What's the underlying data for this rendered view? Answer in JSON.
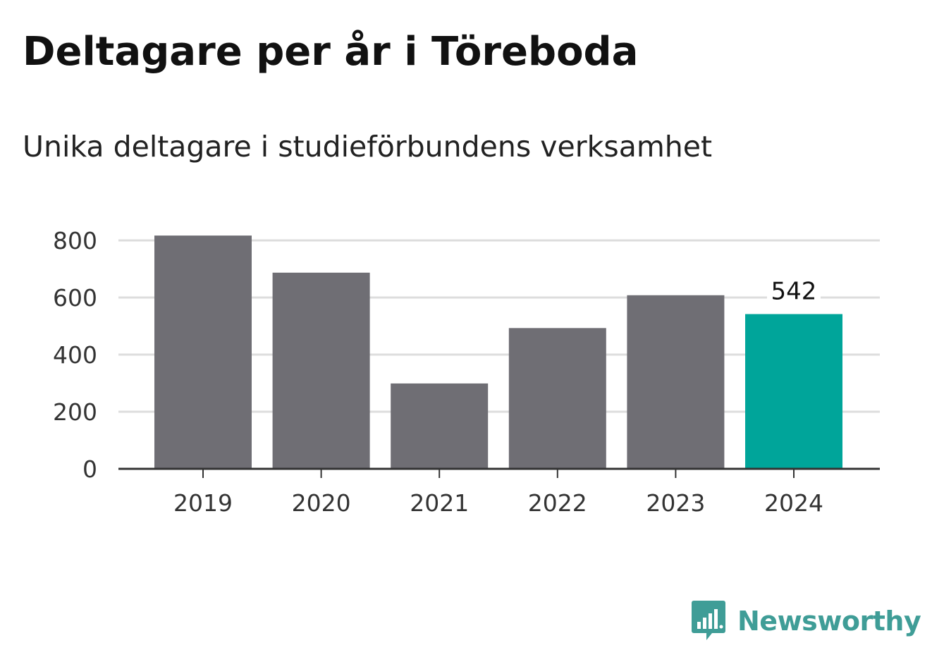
{
  "header": {
    "title": "Deltagare per år i Töreboda",
    "subtitle": "Unika deltagare i studieförbundens verksamhet"
  },
  "branding": {
    "logo_text": "Newsworthy",
    "logo_color": "#3f9d97",
    "icon": "speech-bubble-bar-chart-icon"
  },
  "colors": {
    "bar_default": "#6f6e74",
    "bar_highlight": "#00a59a",
    "gridline": "#dddddd",
    "axis": "#333333"
  },
  "chart_data": {
    "type": "bar",
    "categories": [
      "2019",
      "2020",
      "2021",
      "2022",
      "2023",
      "2024"
    ],
    "values": [
      817,
      687,
      299,
      493,
      608,
      542
    ],
    "highlight_index": 5,
    "data_labels": [
      null,
      null,
      null,
      null,
      null,
      "542"
    ],
    "title": "Deltagare per år i Töreboda",
    "subtitle": "Unika deltagare i studieförbundens verksamhet",
    "xlabel": "",
    "ylabel": "",
    "ylim": [
      0,
      800
    ],
    "yticks": [
      "0",
      "200",
      "400",
      "600",
      "800"
    ],
    "grid": true,
    "legend": "none"
  }
}
